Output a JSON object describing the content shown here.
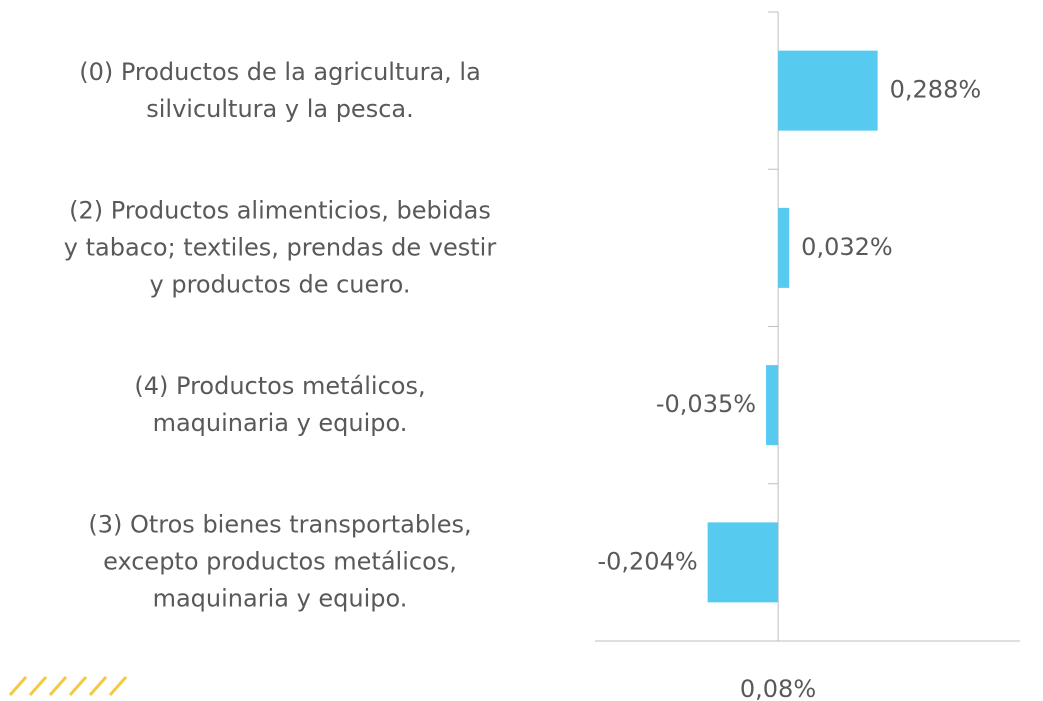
{
  "chart_data": {
    "type": "hbar",
    "categories": [
      "(0) Productos de la agricultura, la\nsilvicultura y la pesca.",
      "(2) Productos alimenticios, bebidas\ny tabaco; textiles, prendas de vestir\ny productos de cuero.",
      "(4) Productos metálicos,\nmaquinaria y equipo.",
      "(3) Otros bienes transportables,\nexcepto productos metálicos,\nmaquinaria y equipo."
    ],
    "values": [
      0.288,
      0.032,
      -0.035,
      -0.204
    ],
    "value_labels": [
      "0,288%",
      "0,032%",
      "-0,035%",
      "-0,204%"
    ],
    "color": "#56cbef",
    "xlim": [
      -0.53,
      0.7
    ],
    "annotation": "0,08%"
  }
}
